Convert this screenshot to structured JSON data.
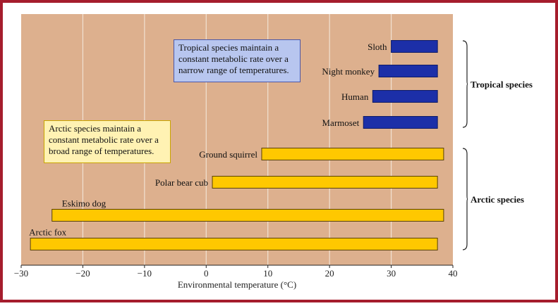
{
  "chart_data": {
    "type": "bar",
    "subtype": "floating-horizontal-range",
    "xlabel": "Environmental temperature (°C)",
    "xlim": [
      -30,
      40
    ],
    "xticks": [
      -30,
      -20,
      -10,
      0,
      10,
      20,
      30,
      40
    ],
    "xtick_labels": [
      "−30",
      "−20",
      "−10",
      "0",
      "10",
      "20",
      "30",
      "40"
    ],
    "grid": "vertical",
    "series": [
      {
        "name": "Tropical species",
        "color": "#1c2fa8",
        "categories": [
          "Sloth",
          "Night monkey",
          "Human",
          "Marmoset"
        ],
        "ranges": [
          [
            30,
            37.5
          ],
          [
            28,
            37.5
          ],
          [
            27,
            37.5
          ],
          [
            25.5,
            37.5
          ]
        ]
      },
      {
        "name": "Arctic species",
        "color": "#ffc800",
        "categories": [
          "Ground squirrel",
          "Polar bear cub",
          "Eskimo dog",
          "Arctic fox"
        ],
        "ranges": [
          [
            9,
            38.5
          ],
          [
            1,
            37.5
          ],
          [
            -25,
            38.5
          ],
          [
            -28.5,
            37.5
          ]
        ]
      }
    ],
    "group_labels": [
      "Tropical species",
      "Arctic species"
    ],
    "annotations": [
      "Tropical species maintain a constant metabolic rate over a narrow range of temperatures.",
      "Arctic species maintain a constant metabolic rate over a broad range of temperatures."
    ]
  },
  "colors": {
    "frame": "#a51d2d",
    "plot_background": "#ddb08e",
    "grid": "#f1e1d2"
  }
}
